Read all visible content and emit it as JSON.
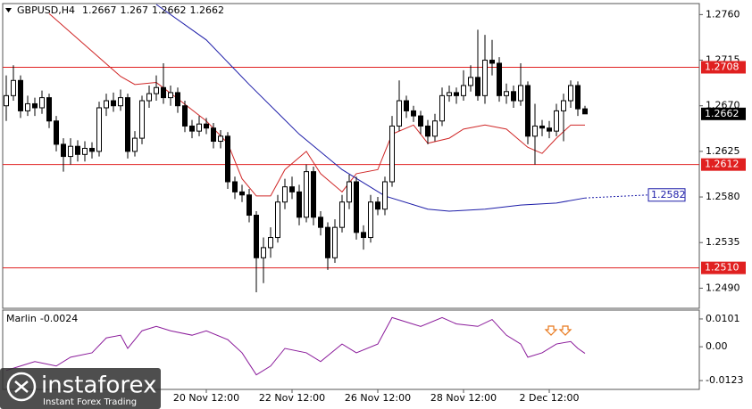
{
  "chart_data": {
    "type": "candlestick",
    "title": "GBPUSD,H4",
    "categories": [
      null,
      null,
      null,
      null,
      null,
      null,
      null,
      null,
      null,
      null,
      null,
      null,
      null,
      null,
      null,
      null,
      null,
      null,
      null,
      null,
      null,
      null,
      null,
      null,
      null,
      null,
      null,
      null,
      "20 Nov 12:00",
      null,
      null,
      null,
      null,
      null,
      null,
      null,
      null,
      null,
      null,
      null,
      "22 Nov 12:00",
      null,
      null,
      null,
      null,
      null,
      null,
      null,
      null,
      null,
      null,
      null,
      "26 Nov 12:00",
      null,
      null,
      null,
      null,
      null,
      null,
      null,
      null,
      null,
      null,
      null,
      "28 Nov 12:00",
      null,
      null,
      null,
      null,
      null,
      null,
      null,
      null,
      null,
      null,
      null,
      "2 Dec 12:00",
      null,
      null,
      null,
      null,
      null
    ],
    "open": [
      1.267,
      1.268,
      1.2695,
      1.2665,
      1.2672,
      1.2668,
      1.2678,
      1.2655,
      1.2632,
      1.262,
      1.263,
      1.2622,
      1.2628,
      1.2625,
      1.2668,
      1.2675,
      1.267,
      1.2678,
      1.2625,
      1.2638,
      1.2675,
      1.2682,
      1.2688,
      1.2678,
      1.2683,
      1.267,
      1.265,
      1.2645,
      1.2652,
      1.2648,
      1.2635,
      1.264,
      1.2595,
      1.2585,
      1.2582,
      1.2562,
      1.252,
      1.253,
      1.254,
      1.2575,
      1.259,
      1.2585,
      1.256,
      1.2605,
      1.256,
      1.255,
      1.252,
      1.255,
      1.2575,
      1.2595,
      1.2545,
      1.254,
      1.2575,
      1.2568,
      1.2595,
      1.265,
      1.2675,
      1.2665,
      1.266,
      1.265,
      1.264,
      1.2655,
      1.268,
      1.2683,
      1.268,
      1.269,
      1.2698,
      1.268,
      1.2715,
      1.2712,
      1.268,
      1.2684,
      1.2675,
      1.269,
      1.264,
      1.265,
      1.2648,
      1.2645,
      1.2665,
      1.2675,
      1.269,
      1.2667
    ],
    "high": [
      1.27,
      1.271,
      1.27,
      1.268,
      1.2678,
      1.2685,
      1.2682,
      1.266,
      1.2638,
      1.2638,
      1.2636,
      1.2635,
      1.2634,
      1.2674,
      1.2682,
      1.2683,
      1.2686,
      1.2682,
      1.2645,
      1.268,
      1.269,
      1.27,
      1.2712,
      1.269,
      1.2688,
      1.2675,
      1.2656,
      1.266,
      1.2658,
      1.2653,
      1.2646,
      1.2644,
      1.26,
      1.2592,
      1.2588,
      1.2566,
      1.254,
      1.255,
      1.2582,
      1.2598,
      1.26,
      1.2592,
      1.2612,
      1.261,
      1.2566,
      1.2555,
      1.2558,
      1.2582,
      1.2602,
      1.26,
      1.2552,
      1.2582,
      1.258,
      1.26,
      1.266,
      1.2695,
      1.268,
      1.267,
      1.2665,
      1.2656,
      1.2662,
      1.2688,
      1.269,
      1.2688,
      1.2705,
      1.271,
      1.2745,
      1.274,
      1.2735,
      1.2718,
      1.2692,
      1.269,
      1.2712,
      1.2694,
      1.2672,
      1.2656,
      1.2655,
      1.2672,
      1.2682,
      1.2695,
      1.2694,
      1.267
    ],
    "low": [
      1.2655,
      1.2675,
      1.2658,
      1.266,
      1.266,
      1.2662,
      1.2648,
      1.2625,
      1.2605,
      1.2612,
      1.2615,
      1.2615,
      1.2618,
      1.262,
      1.266,
      1.2664,
      1.2665,
      1.2618,
      1.262,
      1.2632,
      1.2668,
      1.2675,
      1.2672,
      1.267,
      1.2663,
      1.2644,
      1.2638,
      1.264,
      1.2642,
      1.2628,
      1.2628,
      1.2588,
      1.2578,
      1.2575,
      1.2555,
      1.2486,
      1.2495,
      1.252,
      1.2535,
      1.2568,
      1.2578,
      1.2552,
      1.2555,
      1.2552,
      1.2542,
      1.2508,
      1.2515,
      1.2545,
      1.2568,
      1.2538,
      1.2528,
      1.2535,
      1.2562,
      1.2562,
      1.259,
      1.2645,
      1.2658,
      1.2654,
      1.2642,
      1.2632,
      1.2635,
      1.265,
      1.2674,
      1.2672,
      1.2675,
      1.2684,
      1.2675,
      1.2672,
      1.27,
      1.2674,
      1.2672,
      1.2668,
      1.267,
      1.2632,
      1.2612,
      1.264,
      1.2638,
      1.264,
      1.2635,
      1.2668,
      1.266,
      1.2662
    ],
    "close": [
      1.268,
      1.2695,
      1.2665,
      1.2672,
      1.2668,
      1.2678,
      1.2655,
      1.2632,
      1.262,
      1.263,
      1.2622,
      1.2628,
      1.2625,
      1.2668,
      1.2675,
      1.267,
      1.2678,
      1.2625,
      1.2638,
      1.2675,
      1.2682,
      1.2688,
      1.2678,
      1.2683,
      1.267,
      1.265,
      1.2645,
      1.2652,
      1.2648,
      1.2635,
      1.264,
      1.2595,
      1.2585,
      1.2582,
      1.2562,
      1.252,
      1.253,
      1.254,
      1.2575,
      1.259,
      1.2585,
      1.256,
      1.2605,
      1.256,
      1.255,
      1.252,
      1.255,
      1.2575,
      1.2595,
      1.2545,
      1.254,
      1.2575,
      1.2568,
      1.2595,
      1.265,
      1.2675,
      1.2665,
      1.266,
      1.265,
      1.264,
      1.2655,
      1.268,
      1.2683,
      1.268,
      1.269,
      1.2698,
      1.268,
      1.2715,
      1.2712,
      1.268,
      1.2684,
      1.2675,
      1.269,
      1.264,
      1.265,
      1.2648,
      1.2645,
      1.2665,
      1.2675,
      1.269,
      1.2667,
      1.2662
    ],
    "ylim": [
      1.2471,
      1.277
    ],
    "yticks": [
      {
        "value": 1.276,
        "label": "1.2760"
      },
      1.2715,
      {
        "value": 1.267,
        "label": "1.2670"
      },
      1.2625,
      {
        "value": 1.258,
        "label": "1.2580"
      },
      1.2535,
      {
        "value": 1.249,
        "label": "1.2490"
      }
    ],
    "grid": false,
    "bull_color": "#ffffff",
    "bear_color": "#000000",
    "levels": [
      1.2708,
      1.2612,
      {
        "value": 1.251,
        "label": "1.2510"
      }
    ],
    "level_color": "#e02020",
    "current_price": 1.2662,
    "lines": [
      {
        "color": "#d02828",
        "x": [
          6,
          16,
          18,
          21,
          24,
          28,
          31,
          33,
          35,
          37,
          39,
          42,
          44,
          47,
          49,
          52,
          54,
          57,
          59,
          62,
          64,
          67,
          70,
          73,
          75,
          77,
          79,
          81
        ],
        "values": [
          1.2761,
          1.2699,
          1.2691,
          1.2693,
          1.2677,
          1.2655,
          1.2633,
          1.2598,
          1.2581,
          1.2581,
          1.2607,
          1.2625,
          1.2603,
          1.2585,
          1.2603,
          1.2607,
          1.2642,
          1.2651,
          1.2633,
          1.2638,
          1.2647,
          1.2651,
          1.2647,
          1.2629,
          1.2623,
          1.2638,
          1.2651,
          1.2651
        ]
      },
      {
        "color": "#1c1ca8",
        "x": [
          21,
          28,
          34,
          41,
          47,
          53,
          59,
          62,
          67,
          72,
          77,
          81
        ],
        "values": [
          1.277,
          1.2735,
          1.2691,
          1.2642,
          1.2607,
          1.2581,
          1.2568,
          1.2566,
          1.2568,
          1.2572,
          1.2574,
          1.2579
        ]
      }
    ],
    "projection_label": 1.2582,
    "oscillator": {
      "name": "Marlin",
      "color": "#8a1a9a",
      "x": [
        0,
        2,
        4,
        7,
        9,
        12,
        14,
        16,
        17,
        19,
        21,
        23,
        26,
        28,
        31,
        33,
        35,
        37,
        39,
        42,
        44,
        47,
        49,
        52,
        54,
        56,
        58,
        61,
        63,
        66,
        68,
        70,
        72,
        73,
        75,
        77,
        79,
        80,
        81
      ],
      "values": [
        -0.0086,
        -0.007,
        -0.0054,
        -0.007,
        -0.0038,
        -0.0022,
        0.0032,
        0.0042,
        -0.0006,
        0.0058,
        0.0074,
        0.0058,
        0.0042,
        0.0058,
        0.0026,
        -0.0022,
        -0.0102,
        -0.007,
        -0.0006,
        -0.0022,
        -0.0054,
        0.001,
        -0.0022,
        0.001,
        0.0106,
        0.009,
        0.0074,
        0.0106,
        0.0083,
        0.0074,
        0.0099,
        0.0042,
        0.001,
        -0.0038,
        -0.0022,
        0.001,
        0.0019,
        -0.0006,
        -0.0024
      ],
      "ylim": [
        -0.0155,
        0.013
      ],
      "yticks": [
        0.0101,
        {
          "value": 0,
          "label": "0.00"
        },
        -0.0123
      ]
    }
  },
  "branding": {
    "name": "instaforex",
    "tagline": "Instant Forex Trading"
  }
}
